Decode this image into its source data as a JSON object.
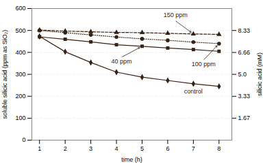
{
  "chart_data": {
    "type": "line",
    "xlabel": "time (h)",
    "ylabel": "soluble silicic acid (ppm as SiO₂)",
    "y2label": "silicic acid (mM)",
    "x": [
      1,
      2,
      3,
      4,
      5,
      6,
      7,
      8
    ],
    "xlim": [
      0.7,
      8.5
    ],
    "xticks": [
      1,
      2,
      3,
      4,
      5,
      6,
      7,
      8
    ],
    "ylim": [
      0,
      600
    ],
    "yticks": [
      0,
      100,
      200,
      300,
      400,
      500,
      600
    ],
    "y2lim": [
      0,
      10
    ],
    "y2ticks": [
      1.67,
      3.33,
      {
        "value": 5,
        "label": "5.0"
      },
      6.66,
      8.33
    ],
    "grid": true,
    "series": [
      {
        "name": "150 ppm",
        "color": "#3a2010",
        "marker": "triangle",
        "line_style": "dashed",
        "values": [
          502,
          497,
          494,
          491,
          490,
          487,
          484,
          482
        ]
      },
      {
        "name": "100 ppm",
        "color": "#3a2010",
        "marker": "circle",
        "line_style": "dotted",
        "values": [
          500,
          490,
          480,
          470,
          462,
          455,
          447,
          440
        ]
      },
      {
        "name": "40 ppm",
        "color": "#3a2010",
        "marker": "square",
        "line_style": "solid",
        "values": [
          471,
          460,
          448,
          435,
          428,
          420,
          413,
          405
        ]
      },
      {
        "name": "control",
        "color": "#3a2010",
        "marker": "diamond",
        "line_style": "solid",
        "values": [
          473,
          403,
          354,
          310,
          287,
          272,
          257,
          245
        ]
      }
    ]
  }
}
